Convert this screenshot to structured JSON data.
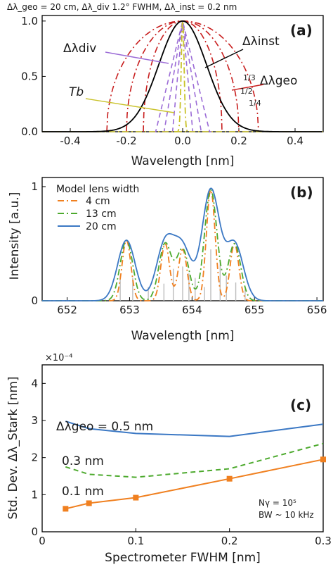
{
  "header": {
    "text": "Δλ_geo = 20 cm, Δλ_div 1.2° FWHM, Δλ_inst = 0.2 nm"
  },
  "chart_data": [
    {
      "panel": "(a)",
      "type": "line",
      "xlabel": "Wavelength [nm]",
      "ylabel": "",
      "xlim": [
        -0.5,
        0.5
      ],
      "ylim": [
        0,
        1.05
      ],
      "xticks": [
        "-0.4",
        "-0.2",
        "0.0",
        "0.2",
        "0.4"
      ],
      "yticks": [
        "0.0",
        "0.5",
        "1.0"
      ],
      "annotations": [
        "Δλdiv",
        "Δλinst",
        "Δλgeo",
        "Tb",
        "1/3",
        "1/2",
        "1/4"
      ],
      "series": [
        {
          "name": "Δλinst",
          "style": "solid",
          "color": "#000000",
          "fwhm": 0.2
        },
        {
          "name": "Δλdiv",
          "style": "dashed",
          "color": "#9b6bd6",
          "widths": [
            0.03,
            0.055,
            0.08
          ]
        },
        {
          "name": "Δλgeo",
          "style": "dashdot",
          "color": "#c81e1e",
          "widths": [
            0.14,
            0.2,
            0.27
          ]
        },
        {
          "name": "Tb",
          "style": "dashdot",
          "color": "#c9c22a",
          "width": 0.012
        }
      ]
    },
    {
      "panel": "(b)",
      "type": "line",
      "xlabel": "Wavelength [nm]",
      "ylabel": "Intensity [a.u.]",
      "xlim": [
        651.6,
        656.1
      ],
      "ylim": [
        0,
        1.08
      ],
      "xticks": [
        "652",
        "653",
        "654",
        "655",
        "656"
      ],
      "yticks": [
        "0",
        "1"
      ],
      "legend_title": "Model lens width",
      "legend_placement": "top-left",
      "stick_lines": [
        {
          "x": 652.85,
          "h": 0.22
        },
        {
          "x": 653.05,
          "h": 0.2
        },
        {
          "x": 653.3,
          "h": 0.12
        },
        {
          "x": 653.55,
          "h": 0.15
        },
        {
          "x": 653.7,
          "h": 0.28
        },
        {
          "x": 653.85,
          "h": 0.3
        },
        {
          "x": 653.95,
          "h": 0.24
        },
        {
          "x": 654.05,
          "h": 0.2
        },
        {
          "x": 654.2,
          "h": 0.12
        },
        {
          "x": 654.3,
          "h": 0.45
        },
        {
          "x": 654.45,
          "h": 0.36
        },
        {
          "x": 654.55,
          "h": 0.22
        },
        {
          "x": 654.7,
          "h": 0.16
        },
        {
          "x": 654.85,
          "h": 0.1
        }
      ],
      "peaks": [
        {
          "x": 652.95,
          "a": 0.53
        },
        {
          "x": 653.57,
          "a": 0.5
        },
        {
          "x": 653.85,
          "a": 0.45
        },
        {
          "x": 654.3,
          "a": 0.97
        },
        {
          "x": 654.68,
          "a": 0.5
        }
      ],
      "series": [
        {
          "name": "4 cm",
          "style": "dashdot",
          "color": "#f08020",
          "sigma": 0.07
        },
        {
          "name": "13 cm",
          "style": "dashdot",
          "color": "#4daa2e",
          "sigma": 0.1
        },
        {
          "name": "20 cm",
          "style": "solid",
          "color": "#3b78c4",
          "sigma": 0.14
        }
      ]
    },
    {
      "panel": "(c)",
      "type": "line",
      "xlabel": "Spectrometer FWHM [nm]",
      "ylabel": "Std. Dev. Δλ_Stark [nm]",
      "exponent": "×10⁻⁴",
      "xlim": [
        0,
        0.3
      ],
      "ylim": [
        0,
        4.5
      ],
      "xticks": [
        "0",
        "0.1",
        "0.2",
        "0.3"
      ],
      "yticks": [
        "0",
        "1",
        "2",
        "3",
        "4"
      ],
      "note_lines": [
        "Nγ = 10⁵",
        "BW ~ 10 kHz"
      ],
      "series": [
        {
          "name": "Δλgeo = 0.5 nm",
          "style": "solid",
          "color": "#3b78c4",
          "x": [
            0.025,
            0.05,
            0.1,
            0.2,
            0.3
          ],
          "y": [
            2.98,
            2.78,
            2.65,
            2.57,
            2.9
          ]
        },
        {
          "name": "0.3 nm",
          "style": "dashed",
          "color": "#4daa2e",
          "x": [
            0.025,
            0.05,
            0.1,
            0.2,
            0.3
          ],
          "y": [
            1.75,
            1.55,
            1.47,
            1.7,
            2.38
          ]
        },
        {
          "name": "0.1 nm",
          "style": "solid-markers",
          "color": "#f08020",
          "x": [
            0.025,
            0.05,
            0.1,
            0.2,
            0.3
          ],
          "y": [
            0.62,
            0.77,
            0.92,
            1.43,
            1.95
          ]
        }
      ]
    }
  ]
}
